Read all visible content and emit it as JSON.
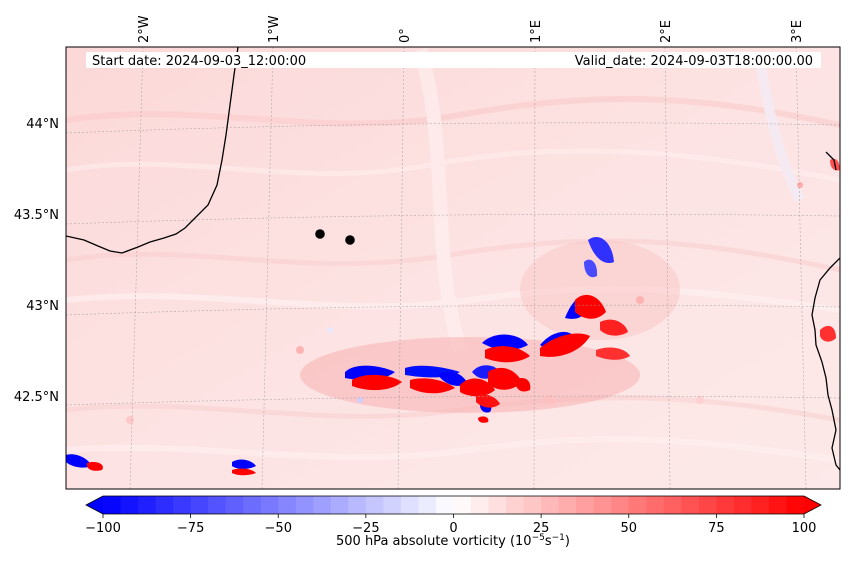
{
  "header": {
    "start_date": "Start date: 2024-09-03_12:00:00",
    "valid_date": "Valid_date: 2024-09-03T18:00:00.00"
  },
  "map": {
    "lon_labels": [
      "2°W",
      "1°W",
      "0°",
      "1°E",
      "2°E",
      "3°E"
    ],
    "lat_labels": [
      "44°N",
      "43.5°N",
      "43°N",
      "42.5°N"
    ],
    "markers": [
      "city-marker-1",
      "city-marker-2"
    ]
  },
  "colorbar": {
    "label": "500 hPa absolute vorticity (10",
    "label_exp": "−5",
    "label_unit": "s",
    "label_unit_exp": "−1",
    "label_end": ")",
    "ticks": [
      "−100",
      "−75",
      "−50",
      "−25",
      "0",
      "25",
      "50",
      "75",
      "100"
    ],
    "min_color": "#0000ff",
    "zero_color": "#ffffff",
    "max_color": "#ff0000"
  }
}
